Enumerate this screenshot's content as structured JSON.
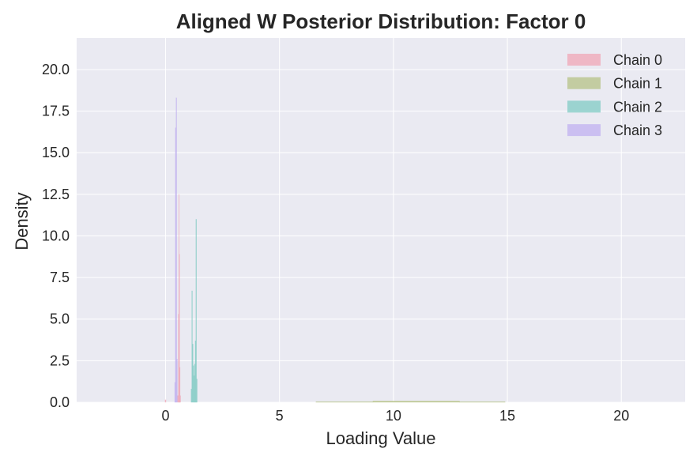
{
  "chart_data": {
    "type": "histogram",
    "title": "Aligned W Posterior Distribution: Factor 0",
    "xlabel": "Loading Value",
    "ylabel": "Density",
    "xlim": [
      -3.9,
      22.8
    ],
    "ylim": [
      0,
      21.9
    ],
    "x_ticks": [
      0,
      5,
      10,
      15,
      20
    ],
    "y_ticks": [
      0.0,
      2.5,
      5.0,
      7.5,
      10.0,
      12.5,
      15.0,
      17.5,
      20.0
    ],
    "grid": true,
    "legend_position": "top-right",
    "series": [
      {
        "name": "Chain 0",
        "color": "#f0a5b5",
        "bins": [
          {
            "x0": -0.02,
            "x1": 0.02,
            "y": 0.15
          },
          {
            "x0": 0.52,
            "x1": 0.56,
            "y": 0.4
          },
          {
            "x0": 0.56,
            "x1": 0.58,
            "y": 5.3
          },
          {
            "x0": 0.58,
            "x1": 0.6,
            "y": 12.5
          },
          {
            "x0": 0.6,
            "x1": 0.62,
            "y": 8.9
          },
          {
            "x0": 0.62,
            "x1": 0.64,
            "y": 2.1
          },
          {
            "x0": 0.64,
            "x1": 0.66,
            "y": 0.4
          }
        ]
      },
      {
        "name": "Chain 1",
        "color": "#b5c285",
        "bins": [
          {
            "x0": 6.6,
            "x1": 9.1,
            "y": 0.04
          },
          {
            "x0": 9.1,
            "x1": 12.9,
            "y": 0.08
          },
          {
            "x0": 12.9,
            "x1": 14.9,
            "y": 0.04
          }
        ]
      },
      {
        "name": "Chain 2",
        "color": "#80cbc4",
        "bins": [
          {
            "x0": 1.12,
            "x1": 1.15,
            "y": 0.8
          },
          {
            "x0": 1.15,
            "x1": 1.18,
            "y": 6.7
          },
          {
            "x0": 1.18,
            "x1": 1.21,
            "y": 3.5
          },
          {
            "x0": 1.21,
            "x1": 1.24,
            "y": 2.2
          },
          {
            "x0": 1.24,
            "x1": 1.27,
            "y": 1.6
          },
          {
            "x0": 1.27,
            "x1": 1.3,
            "y": 2.3
          },
          {
            "x0": 1.3,
            "x1": 1.33,
            "y": 3.7
          },
          {
            "x0": 1.33,
            "x1": 1.36,
            "y": 11.0
          },
          {
            "x0": 1.36,
            "x1": 1.39,
            "y": 1.4
          }
        ]
      },
      {
        "name": "Chain 3",
        "color": "#c0b0f0",
        "bins": [
          {
            "x0": 0.4,
            "x1": 0.43,
            "y": 1.2
          },
          {
            "x0": 0.43,
            "x1": 0.46,
            "y": 16.5
          },
          {
            "x0": 0.46,
            "x1": 0.49,
            "y": 18.3
          },
          {
            "x0": 0.49,
            "x1": 0.52,
            "y": 2.6
          }
        ]
      }
    ]
  }
}
